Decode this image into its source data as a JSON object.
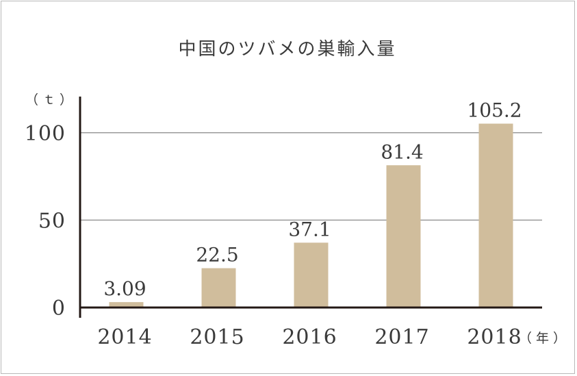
{
  "chart_data": {
    "type": "bar",
    "title": "中国のツバメの巣輸入量",
    "ylabel": "（ｔ）",
    "xlabel": "（年）",
    "categories": [
      "2014",
      "2015",
      "2016",
      "2017",
      "2018"
    ],
    "values": [
      3.09,
      22.5,
      37.1,
      81.4,
      105.2
    ],
    "value_labels": [
      "3.09",
      "22.5",
      "37.1",
      "81.4",
      "105.2"
    ],
    "ylim": [
      0,
      125
    ],
    "yticks": [
      0,
      50,
      100
    ],
    "ytick_labels": [
      "0",
      "50",
      "100"
    ],
    "grid": true,
    "bar_color": "#d0bd9c",
    "axis_color": "#231815",
    "grid_color": "#9a9a9a"
  }
}
